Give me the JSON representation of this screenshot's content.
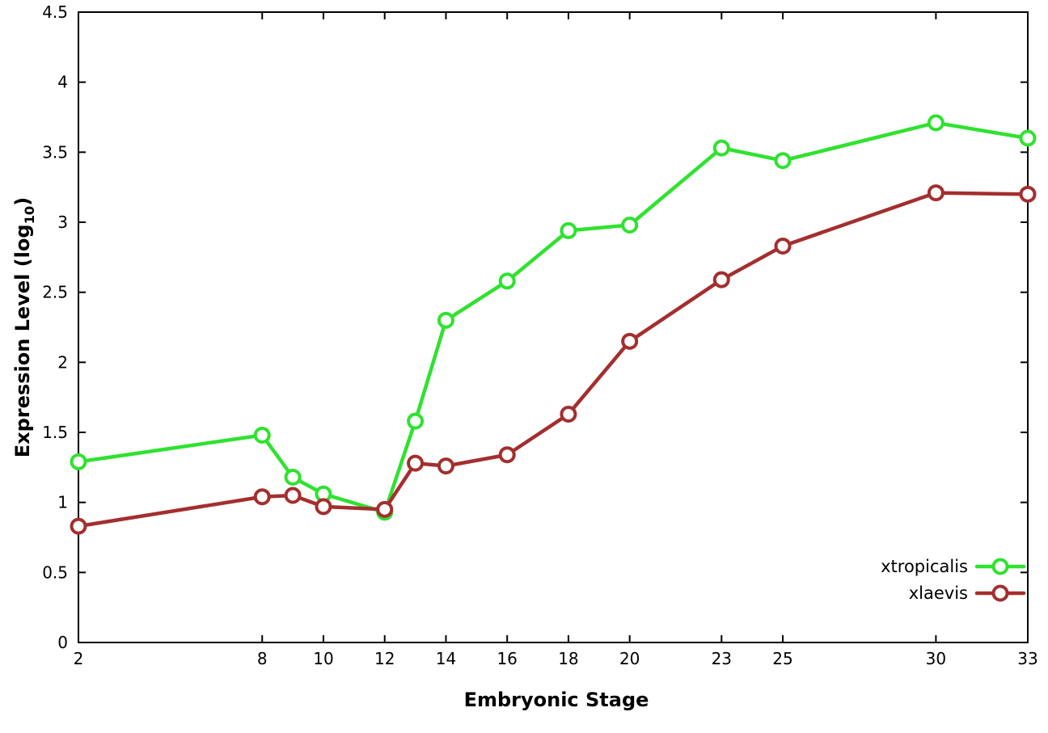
{
  "axis_labels": {
    "y_main": "Expression Level (log",
    "y_sub": "10",
    "y_close": ")",
    "x": "Embryonic Stage"
  },
  "chart_data": {
    "type": "line",
    "title": "",
    "xlabel": "Embryonic Stage",
    "ylabel": "Expression Level (log10)",
    "x": [
      2,
      8,
      9,
      10,
      12,
      13,
      14,
      16,
      18,
      20,
      23,
      25,
      30,
      33
    ],
    "xticks": [
      2,
      8,
      10,
      12,
      14,
      16,
      18,
      20,
      23,
      25,
      30,
      33
    ],
    "yticks": [
      0,
      0.5,
      1,
      1.5,
      2,
      2.5,
      3,
      3.5,
      4,
      4.5
    ],
    "xlim": [
      2,
      33
    ],
    "ylim": [
      0,
      4.5
    ],
    "grid": false,
    "legend_position": "bottom-right",
    "series": [
      {
        "name": "xtropicalis",
        "color": "#2fe22f",
        "values": [
          1.29,
          1.48,
          1.18,
          1.06,
          0.93,
          1.58,
          2.3,
          2.58,
          2.94,
          2.98,
          3.53,
          3.44,
          3.71,
          3.6
        ]
      },
      {
        "name": "xlaevis",
        "color": "#a42e2e",
        "values": [
          0.83,
          1.04,
          1.05,
          0.97,
          0.95,
          1.28,
          1.26,
          1.34,
          1.63,
          2.15,
          2.59,
          2.83,
          3.21,
          3.2
        ]
      }
    ],
    "style": {
      "line_width": 4.5,
      "marker_radius": 8.5,
      "marker_stroke": 4,
      "marker_fill": "#ffffff",
      "border_color": "#000000"
    }
  }
}
